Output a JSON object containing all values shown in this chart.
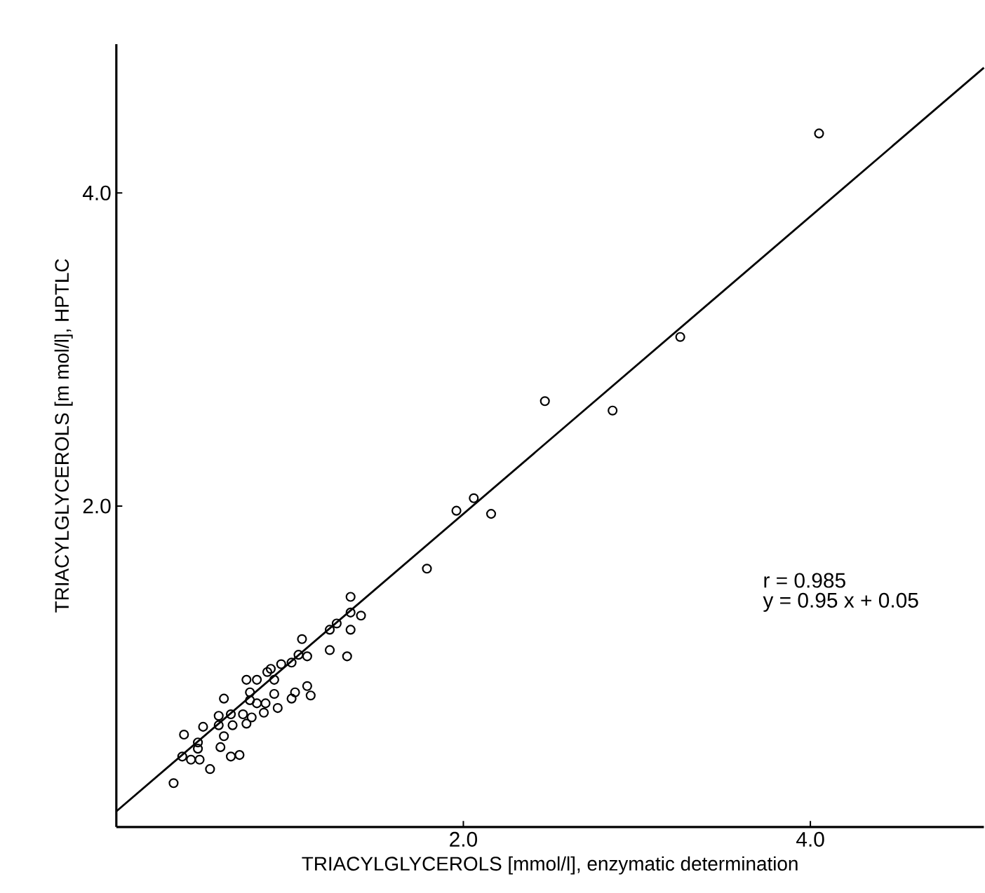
{
  "chart_data": {
    "type": "scatter",
    "xlabel": "TRIACYLGLYCEROLS [mmol/l], enzymatic determination",
    "ylabel": "TRIACYLGLYCEROLS [m mol/l], HPTLC",
    "xlim": [
      0,
      5.0
    ],
    "ylim": [
      -0.05,
      4.95
    ],
    "xticks": [
      {
        "value": 2,
        "label": "2.0"
      },
      {
        "value": 4,
        "label": "4.0"
      }
    ],
    "yticks": [
      {
        "value": 2,
        "label": "2.0"
      },
      {
        "value": 4,
        "label": "4.0"
      }
    ],
    "annotations": [
      "r = 0.985",
      "y = 0.95 x + 0.05"
    ],
    "series": [
      {
        "marker": "circle",
        "color": "#000000",
        "x": [
          4.05,
          3.25,
          2.47,
          2.86,
          2.06,
          1.96,
          2.16,
          1.79,
          1.35,
          1.41,
          1.35,
          1.35,
          1.27,
          1.23,
          1.23,
          1.33,
          1.07,
          1.1,
          1.05,
          1.01,
          0.95,
          0.89,
          0.87,
          0.81,
          0.75,
          0.91,
          1.1,
          1.03,
          1.12,
          1.01,
          0.91,
          0.77,
          0.77,
          0.81,
          0.86,
          0.93,
          0.62,
          0.59,
          0.66,
          0.73,
          0.78,
          0.85,
          0.5,
          0.59,
          0.67,
          0.75,
          0.39,
          0.47,
          0.62,
          0.47,
          0.6,
          0.38,
          0.48,
          0.54,
          0.66,
          0.71,
          0.33,
          0.43
        ],
        "values": [
          4.38,
          3.08,
          2.67,
          2.61,
          2.05,
          1.97,
          1.95,
          1.6,
          1.42,
          1.3,
          1.32,
          1.21,
          1.25,
          1.21,
          1.08,
          1.04,
          1.15,
          1.04,
          1.05,
          1.0,
          0.99,
          0.96,
          0.94,
          0.89,
          0.89,
          0.89,
          0.85,
          0.81,
          0.79,
          0.77,
          0.8,
          0.81,
          0.76,
          0.74,
          0.74,
          0.71,
          0.77,
          0.66,
          0.67,
          0.67,
          0.65,
          0.68,
          0.59,
          0.6,
          0.6,
          0.61,
          0.54,
          0.49,
          0.53,
          0.45,
          0.46,
          0.4,
          0.38,
          0.32,
          0.4,
          0.41,
          0.23,
          0.38
        ]
      },
      {
        "type": "line",
        "line_style": "solid",
        "color": "#000000",
        "x": [
          0,
          5.0
        ],
        "values": [
          0.05,
          4.8
        ]
      }
    ]
  }
}
